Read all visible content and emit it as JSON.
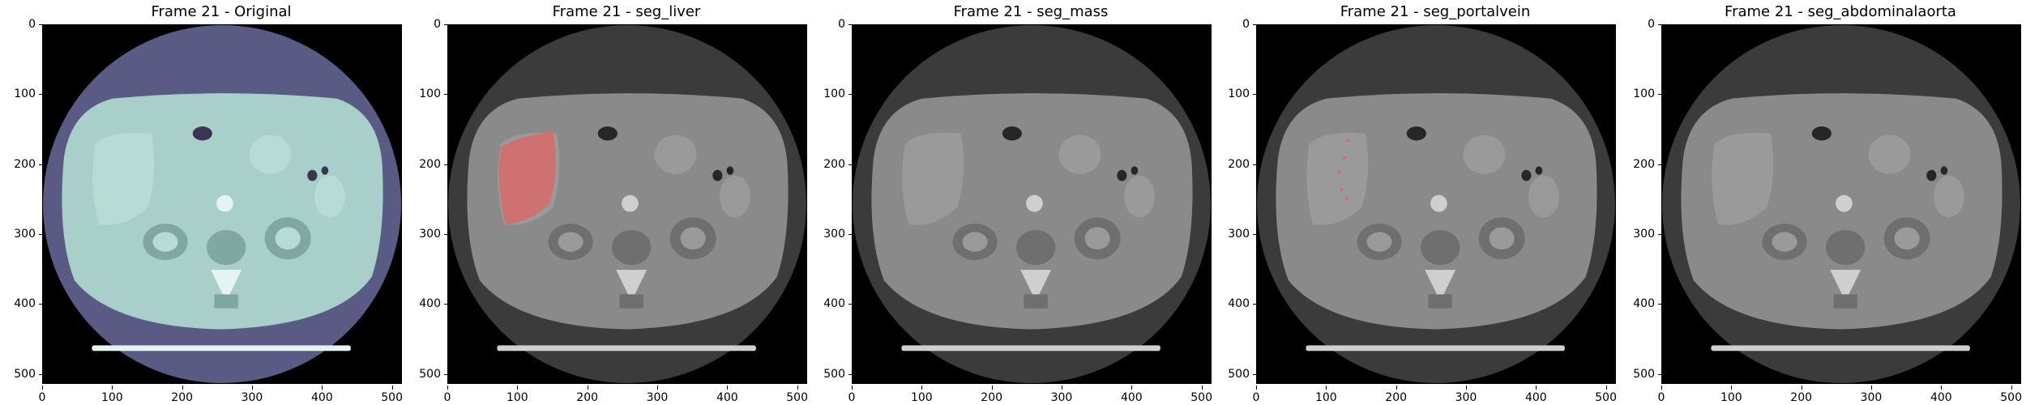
{
  "panels": [
    {
      "title": "Frame 21 - Original",
      "mode": "original",
      "overlay": "none"
    },
    {
      "title": "Frame 21 - seg_liver",
      "mode": "gray",
      "overlay": "liver"
    },
    {
      "title": "Frame 21 - seg_mass",
      "mode": "gray",
      "overlay": "none"
    },
    {
      "title": "Frame 21 - seg_portalvein",
      "mode": "gray",
      "overlay": "portalvein"
    },
    {
      "title": "Frame 21 - seg_abdominalaorta",
      "mode": "gray",
      "overlay": "none"
    }
  ],
  "xticks": [
    "0",
    "100",
    "200",
    "300",
    "400",
    "500"
  ],
  "yticks": [
    "0",
    "100",
    "200",
    "300",
    "400",
    "500"
  ],
  "colors": {
    "original_body": "#a9cfca",
    "original_fov": "#5a5b85",
    "gray_body": "#8a8a8a",
    "gray_fov": "#3b3b3b",
    "overlay": "#d96a6a",
    "background": "#000000"
  }
}
